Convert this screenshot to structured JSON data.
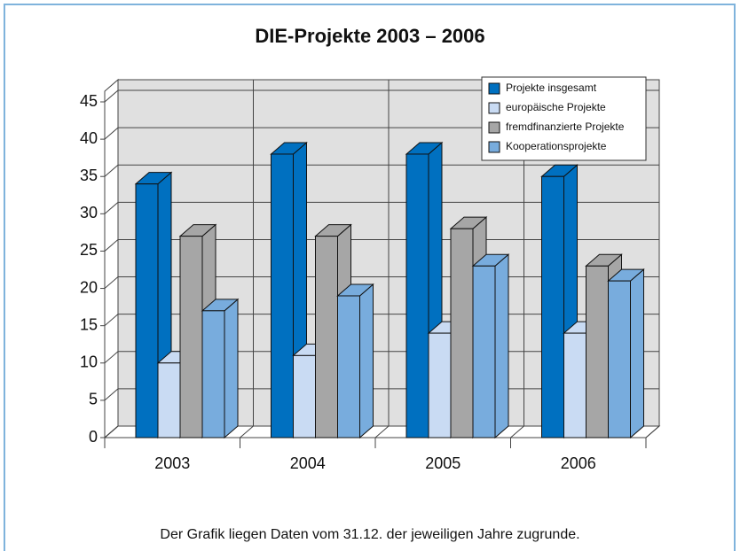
{
  "chart_data": {
    "type": "bar3d",
    "title": "DIE-Projekte 2003 – 2006",
    "categories": [
      "2003",
      "2004",
      "2005",
      "2006"
    ],
    "series": [
      {
        "name": "Projekte insgesamt",
        "color": "#0070c0",
        "values": [
          34,
          38,
          38,
          35
        ]
      },
      {
        "name": "europäische Projekte",
        "color": "#c9dbf3",
        "values": [
          10,
          11,
          14,
          14
        ]
      },
      {
        "name": "fremdfinanzierte Projekte",
        "color": "#a6a6a6",
        "values": [
          27,
          27,
          28,
          23
        ]
      },
      {
        "name": "Kooperationsprojekte",
        "color": "#78acdd",
        "values": [
          17,
          19,
          23,
          21
        ]
      }
    ],
    "ylim": [
      0,
      45
    ],
    "yticks": [
      0,
      5,
      10,
      15,
      20,
      25,
      30,
      35,
      40,
      45
    ],
    "grid": true,
    "legend": "top-right",
    "note": "Der Grafik liegen Daten vom 31.12. der jeweiligen Jahre zugrunde."
  }
}
